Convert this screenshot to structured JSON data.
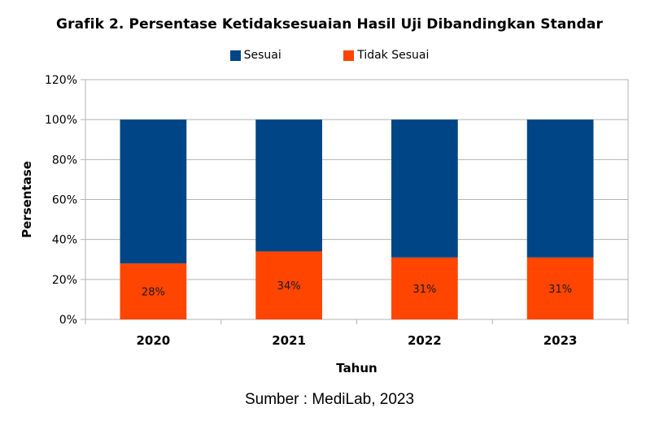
{
  "chart_data": {
    "type": "bar",
    "stacked": true,
    "title": "Grafik 2. Persentase Ketidaksesuaian Hasil Uji Dibandingkan Standar",
    "xlabel": "Tahun",
    "ylabel": "Persentase",
    "categories": [
      "2020",
      "2021",
      "2022",
      "2023"
    ],
    "series": [
      {
        "name": "Tidak Sesuai",
        "values": [
          28,
          34,
          31,
          31
        ],
        "color": "#ff4500",
        "data_labels": [
          "28%",
          "34%",
          "31%",
          "31%"
        ]
      },
      {
        "name": "Sesuai",
        "values": [
          72,
          66,
          69,
          69
        ],
        "color": "#004586"
      }
    ],
    "ylim": [
      0,
      120
    ],
    "yticks": [
      0,
      20,
      40,
      60,
      80,
      100,
      120
    ],
    "ytick_labels": [
      "0%",
      "20%",
      "40%",
      "60%",
      "80%",
      "100%",
      "120%"
    ],
    "grid": true,
    "legend_position": "top"
  },
  "source": "Sumber : MediLab, 2023"
}
